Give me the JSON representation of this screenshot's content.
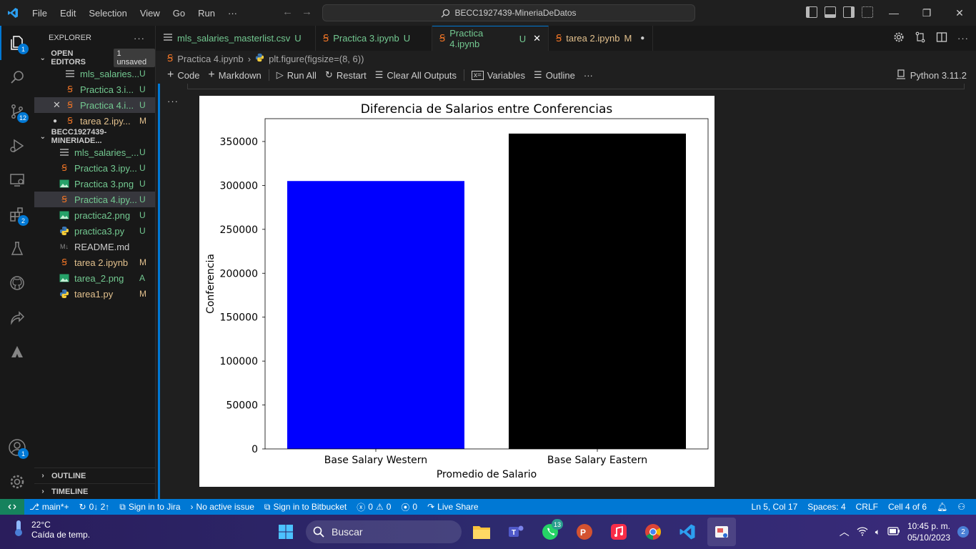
{
  "titlebar": {
    "menu": [
      "File",
      "Edit",
      "Selection",
      "View",
      "Go",
      "Run",
      "···"
    ],
    "search_text": "BECC1927439-MineriaDeDatos"
  },
  "activity": {
    "explorer_badge": "1",
    "scm_badge": "12",
    "extensions_badge": "2",
    "accounts_badge": "1"
  },
  "sidebar": {
    "title": "EXPLORER",
    "more": "···",
    "open_editors": {
      "title": "OPEN EDITORS",
      "unsaved": "1 unsaved",
      "files": [
        {
          "name": "mls_salaries...",
          "status": "U"
        },
        {
          "name": "Practica 3.i...",
          "status": "U"
        },
        {
          "name": "Practica 4.i...",
          "status": "U"
        },
        {
          "name": "tarea 2.ipy...",
          "status": "M"
        }
      ]
    },
    "project": {
      "title": "BECC1927439-MINERIADE...",
      "files": [
        {
          "name": "mls_salaries_...",
          "status": "U"
        },
        {
          "name": "Practica 3.ipy...",
          "status": "U"
        },
        {
          "name": "Practica 3.png",
          "status": "U"
        },
        {
          "name": "Practica 4.ipy...",
          "status": "U"
        },
        {
          "name": "practica2.png",
          "status": "U"
        },
        {
          "name": "practica3.py",
          "status": "U"
        },
        {
          "name": "README.md",
          "status": ""
        },
        {
          "name": "tarea 2.ipynb",
          "status": "M"
        },
        {
          "name": "tarea_2.png",
          "status": "A"
        },
        {
          "name": "tarea1.py",
          "status": "M"
        }
      ]
    },
    "outline": "OUTLINE",
    "timeline": "TIMELINE"
  },
  "tabs": [
    {
      "label": "mls_salaries_masterlist.csv",
      "status": "U"
    },
    {
      "label": "Practica 3.ipynb",
      "status": "U"
    },
    {
      "label": "Practica 4.ipynb",
      "status": "U"
    },
    {
      "label": "tarea 2.ipynb",
      "status": "M"
    }
  ],
  "breadcrumb": {
    "file": "Practica 4.ipynb",
    "symbol": "plt.figure(figsize=(8, 6))"
  },
  "toolbar": {
    "code": "Code",
    "markdown": "Markdown",
    "run_all": "Run All",
    "restart": "Restart",
    "clear_outputs": "Clear All Outputs",
    "variables": "Variables",
    "outline": "Outline",
    "more": "···",
    "kernel": "Python 3.11.2"
  },
  "cell": {
    "more": "···"
  },
  "chart_data": {
    "type": "bar",
    "title": "Diferencia de Salarios entre Conferencias",
    "xlabel": "Promedio de Salario",
    "ylabel": "Conferencia",
    "categories": [
      "Base Salary Western",
      "Base Salary Eastern"
    ],
    "values": [
      305000,
      359000
    ],
    "colors": [
      "#0000ff",
      "#000000"
    ],
    "ylim": [
      0,
      376000
    ],
    "yticks": [
      0,
      50000,
      100000,
      150000,
      200000,
      250000,
      300000,
      350000
    ],
    "grid": false
  },
  "statusbar": {
    "branch": "main*+",
    "sync": "0↓ 2↑",
    "jira": "Sign in to Jira",
    "issue": "No active issue",
    "bitbucket": "Sign in to Bitbucket",
    "errors": "0",
    "warnings": "0",
    "ports": "0",
    "live_share": "Live Share",
    "position": "Ln 5, Col 17",
    "spaces": "Spaces: 4",
    "eol": "CRLF",
    "cell": "Cell 4 of 6"
  },
  "taskbar": {
    "temp": "22°C",
    "weather": "Caída de temp.",
    "search": "Buscar",
    "teams_badge": "",
    "whatsapp_badge": "13",
    "time": "10:45 p. m.",
    "date": "05/10/2023",
    "notifications": "2"
  }
}
